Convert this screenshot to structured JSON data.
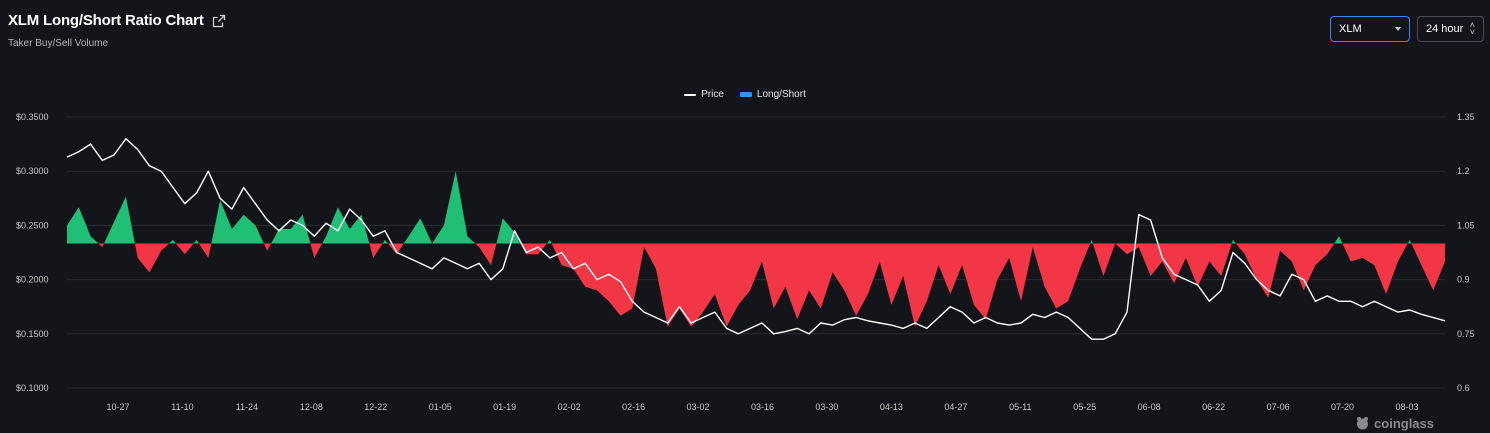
{
  "header": {
    "title": "XLM Long/Short Ratio Chart",
    "subtitle": "Taker Buy/Sell Volume"
  },
  "controls": {
    "symbol": "XLM",
    "interval": "24 hour"
  },
  "legend": {
    "price_label": "Price",
    "ratio_label": "Long/Short"
  },
  "watermark": "coinglass",
  "colors": {
    "background": "#14151a",
    "price_line": "#ffffff",
    "long_fill": "#1fbf75",
    "short_fill": "#f23645",
    "legend_ratio": "#2f95dc",
    "grid": "#2b2d33"
  },
  "chart_data": {
    "type": "area",
    "left_axis": {
      "label": "",
      "ticks": [
        "$0.3500",
        "$0.3000",
        "$0.2500",
        "$0.2000",
        "$0.1500",
        "$0.1000"
      ],
      "range": [
        0.1,
        0.35
      ]
    },
    "right_axis": {
      "label": "",
      "ticks": [
        "1.35",
        "1.2",
        "1.05",
        "0.9",
        "0.75",
        "0.6"
      ],
      "range": [
        0.6,
        1.35
      ]
    },
    "x_ticks": [
      "10-27",
      "11-10",
      "11-24",
      "12-08",
      "12-22",
      "01-05",
      "01-19",
      "02-02",
      "02-16",
      "03-02",
      "03-16",
      "03-30",
      "04-13",
      "04-27",
      "05-11",
      "05-25",
      "06-08",
      "06-22",
      "07-06",
      "07-20",
      "08-03"
    ],
    "baseline_ratio": 1.0,
    "grid": true,
    "legend_position": "top-center",
    "series": [
      {
        "name": "Price",
        "axis": "left",
        "values": [
          0.313,
          0.318,
          0.325,
          0.31,
          0.315,
          0.33,
          0.32,
          0.305,
          0.3,
          0.285,
          0.27,
          0.28,
          0.3,
          0.275,
          0.265,
          0.285,
          0.27,
          0.255,
          0.245,
          0.255,
          0.25,
          0.24,
          0.252,
          0.245,
          0.265,
          0.255,
          0.24,
          0.245,
          0.225,
          0.22,
          0.215,
          0.21,
          0.22,
          0.215,
          0.21,
          0.215,
          0.2,
          0.21,
          0.245,
          0.225,
          0.23,
          0.22,
          0.225,
          0.21,
          0.215,
          0.2,
          0.205,
          0.198,
          0.18,
          0.17,
          0.165,
          0.16,
          0.175,
          0.16,
          0.165,
          0.17,
          0.155,
          0.15,
          0.155,
          0.16,
          0.15,
          0.152,
          0.155,
          0.15,
          0.16,
          0.158,
          0.163,
          0.165,
          0.162,
          0.16,
          0.158,
          0.155,
          0.16,
          0.155,
          0.165,
          0.175,
          0.17,
          0.16,
          0.165,
          0.16,
          0.158,
          0.16,
          0.168,
          0.165,
          0.17,
          0.165,
          0.155,
          0.145,
          0.145,
          0.15,
          0.17,
          0.26,
          0.255,
          0.22,
          0.205,
          0.2,
          0.195,
          0.18,
          0.19,
          0.225,
          0.215,
          0.2,
          0.19,
          0.185,
          0.205,
          0.2,
          0.18,
          0.185,
          0.18,
          0.18,
          0.175,
          0.18,
          0.175,
          0.17,
          0.172,
          0.168,
          0.165,
          0.162
        ]
      },
      {
        "name": "Long/Short",
        "axis": "right",
        "values": [
          1.05,
          1.1,
          1.02,
          0.99,
          1.06,
          1.13,
          0.96,
          0.92,
          0.98,
          1.01,
          0.97,
          1.01,
          0.96,
          1.12,
          1.04,
          1.08,
          1.05,
          0.98,
          1.04,
          1.04,
          1.08,
          0.96,
          1.02,
          1.1,
          1.04,
          1.08,
          0.96,
          1.01,
          0.97,
          1.02,
          1.07,
          1.0,
          1.05,
          1.2,
          1.02,
          0.99,
          0.94,
          1.07,
          1.03,
          0.97,
          0.97,
          1.01,
          0.94,
          0.93,
          0.88,
          0.87,
          0.84,
          0.8,
          0.82,
          0.99,
          0.93,
          0.77,
          0.82,
          0.77,
          0.81,
          0.86,
          0.77,
          0.83,
          0.87,
          0.95,
          0.82,
          0.88,
          0.79,
          0.87,
          0.82,
          0.92,
          0.87,
          0.8,
          0.86,
          0.95,
          0.83,
          0.91,
          0.77,
          0.84,
          0.94,
          0.86,
          0.94,
          0.83,
          0.79,
          0.9,
          0.96,
          0.84,
          0.99,
          0.88,
          0.82,
          0.84,
          0.93,
          1.01,
          0.91,
          1.0,
          0.97,
          0.99,
          0.91,
          0.95,
          0.89,
          0.96,
          0.88,
          0.95,
          0.91,
          1.01,
          0.97,
          0.9,
          0.85,
          0.98,
          0.95,
          0.87,
          0.94,
          0.97,
          1.02,
          0.95,
          0.96,
          0.94,
          0.86,
          0.95,
          1.01,
          0.94,
          0.87,
          0.95
        ]
      }
    ]
  }
}
